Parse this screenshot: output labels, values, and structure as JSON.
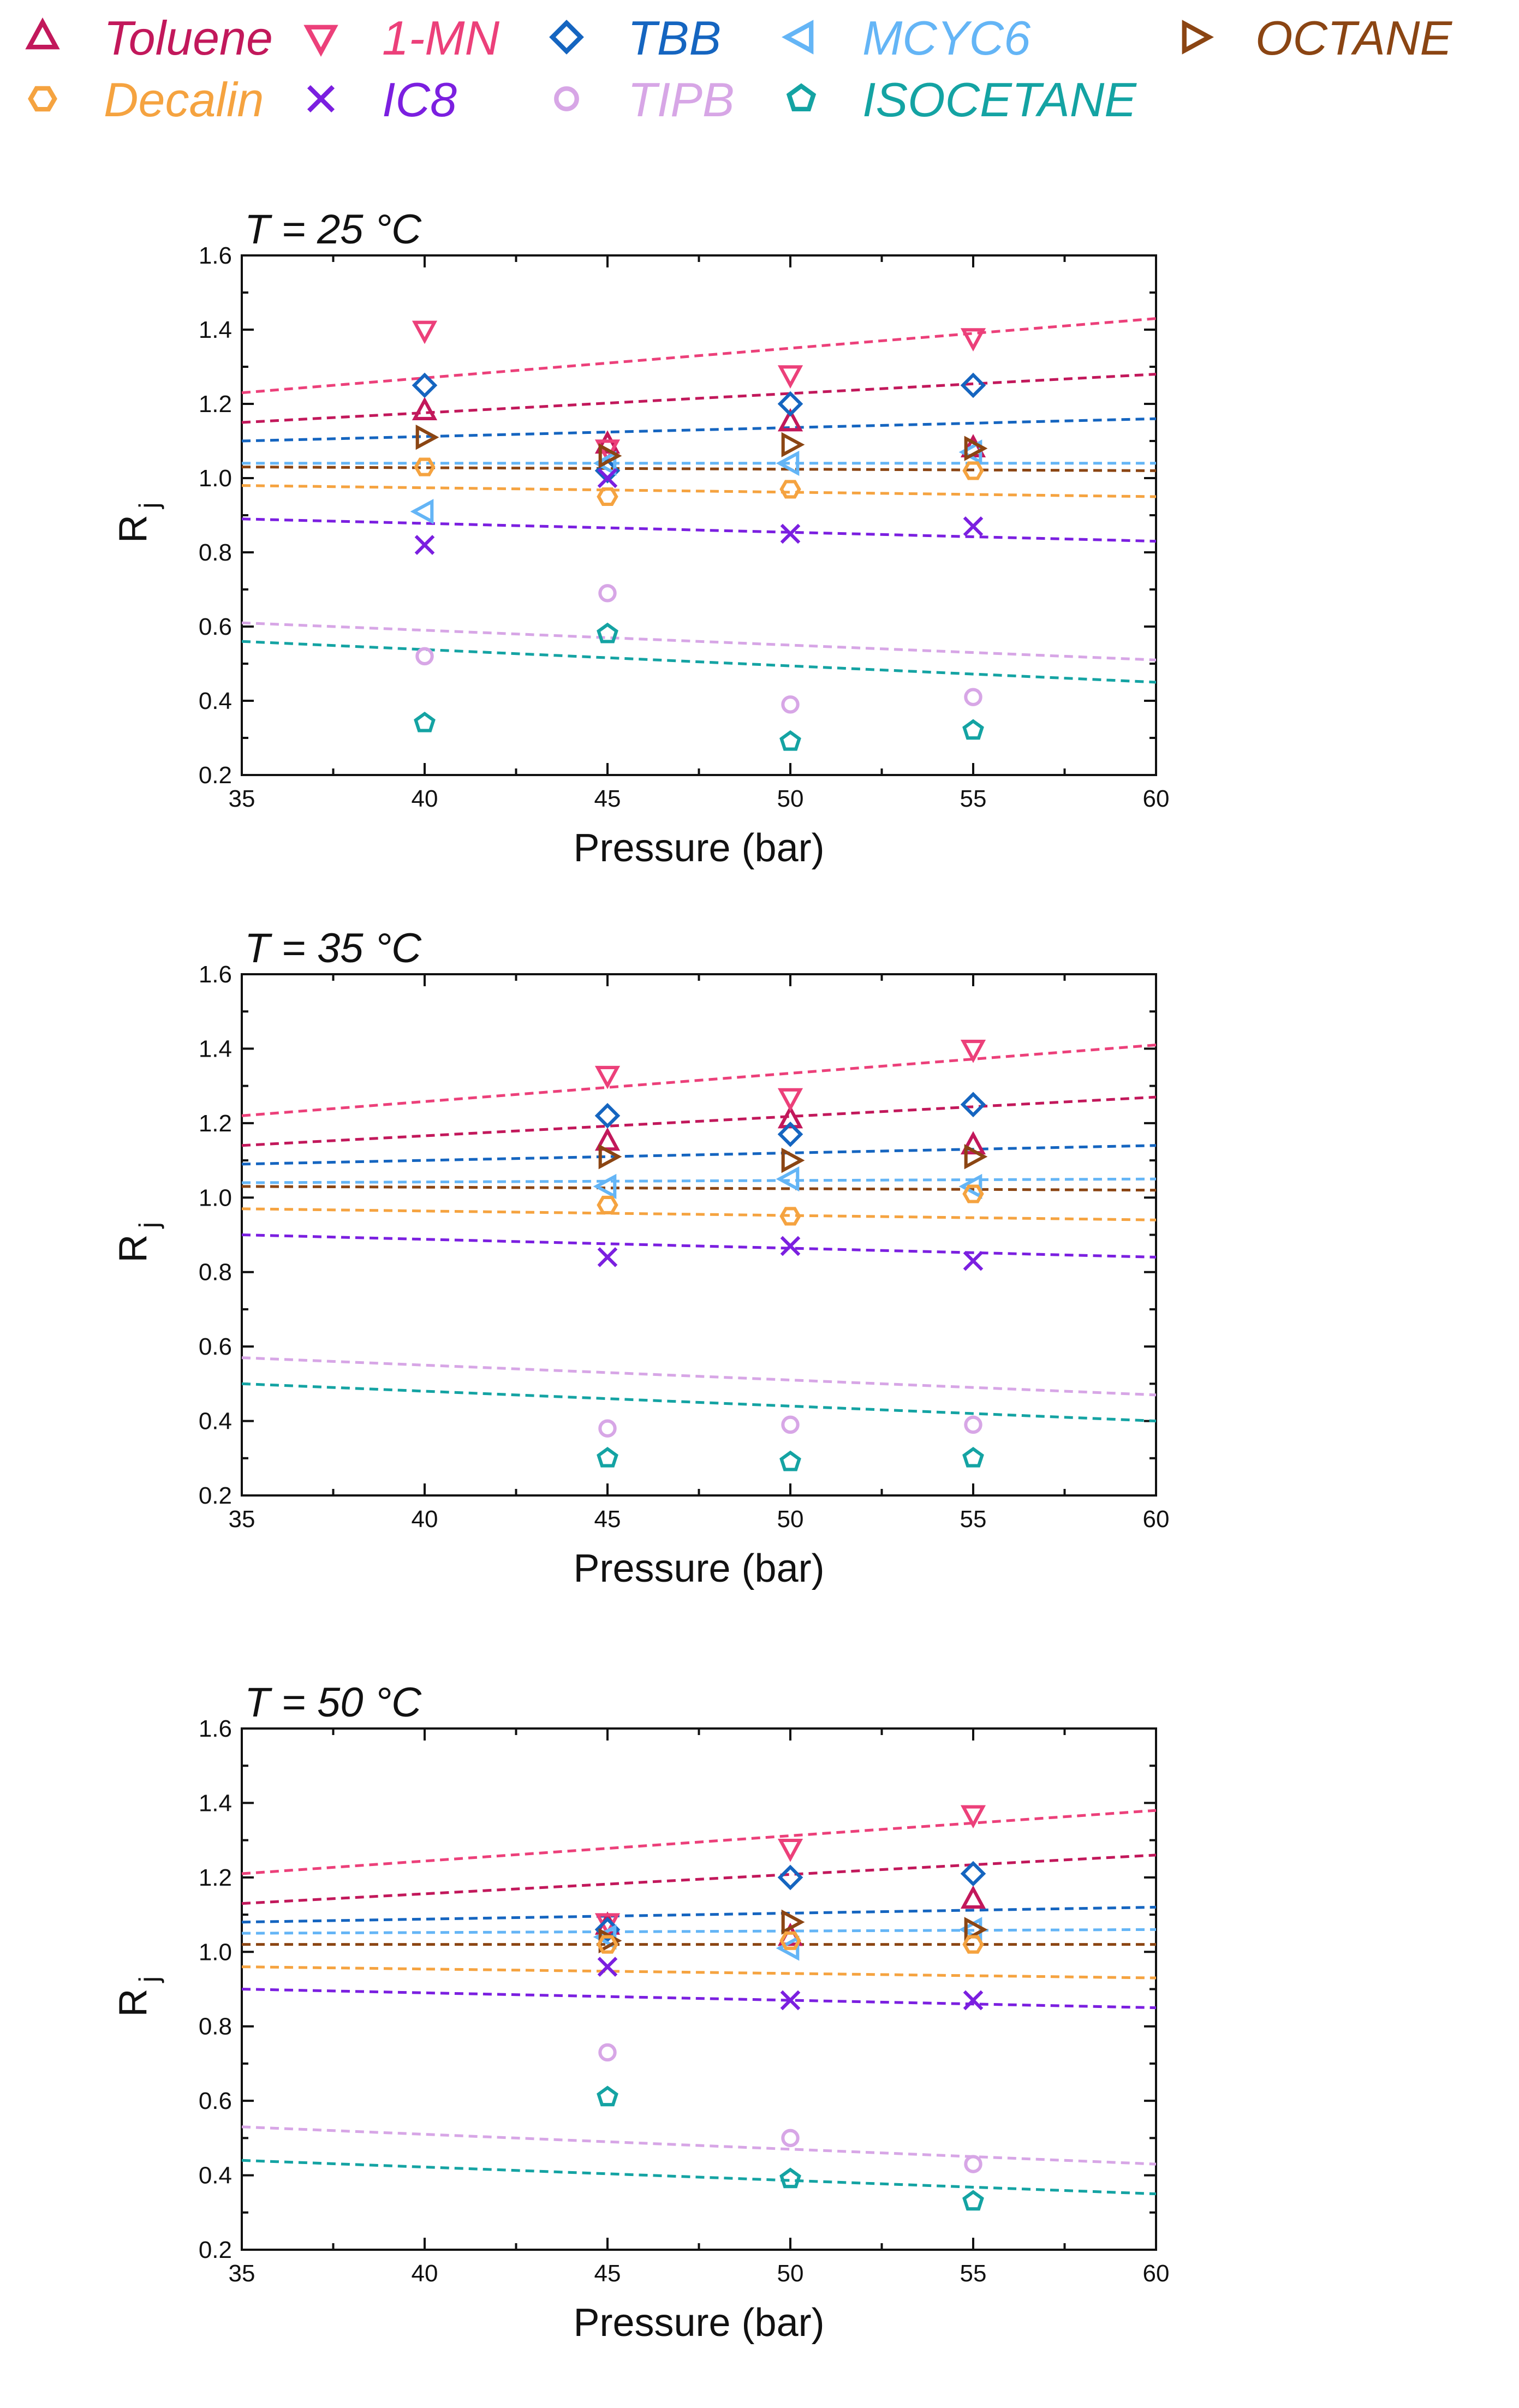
{
  "legend": [
    {
      "key": "toluene",
      "label": "Toluene",
      "marker": "triangle-up",
      "color": "#C2185B"
    },
    {
      "key": "onemn",
      "label": "1-MN",
      "marker": "triangle-down",
      "color": "#EC407A"
    },
    {
      "key": "tbb",
      "label": "TBB",
      "marker": "diamond",
      "color": "#1565C0"
    },
    {
      "key": "mcyc6",
      "label": "MCYC6",
      "marker": "triangle-left",
      "color": "#64B5F6"
    },
    {
      "key": "octane",
      "label": "OCTANE",
      "marker": "triangle-right",
      "color": "#8B4513"
    },
    {
      "key": "decalin",
      "label": "Decalin",
      "marker": "hexagon",
      "color": "#F5A340"
    },
    {
      "key": "ic8",
      "label": "IC8",
      "marker": "x",
      "color": "#7B1FE0"
    },
    {
      "key": "tipb",
      "label": "TIPB",
      "marker": "circle",
      "color": "#D7A6E6"
    },
    {
      "key": "isocetane",
      "label": "ISOCETANE",
      "marker": "pentagon",
      "color": "#14A3A3"
    }
  ],
  "chart_data": [
    {
      "type": "scatter",
      "title": "T = 25 °C",
      "xlabel": "Pressure (bar)",
      "ylabel": "R",
      "ylabel_sub": "j",
      "xlim": [
        35,
        60
      ],
      "ylim": [
        0.2,
        1.6
      ],
      "xticks": [
        "35",
        "40",
        "45",
        "50",
        "55",
        "60"
      ],
      "yticks": [
        "0.2",
        "0.4",
        "0.6",
        "0.8",
        "1.0",
        "1.2",
        "1.4",
        "1.6"
      ],
      "series": [
        {
          "key": "toluene",
          "points": [
            [
              40,
              1.18
            ],
            [
              45,
              1.09
            ],
            [
              50,
              1.15
            ],
            [
              55,
              1.08
            ]
          ],
          "fit": [
            [
              35,
              1.15
            ],
            [
              60,
              1.28
            ]
          ]
        },
        {
          "key": "onemn",
          "points": [
            [
              40,
              1.4
            ],
            [
              45,
              1.08
            ],
            [
              50,
              1.28
            ],
            [
              55,
              1.38
            ]
          ],
          "fit": [
            [
              35,
              1.23
            ],
            [
              60,
              1.43
            ]
          ]
        },
        {
          "key": "tbb",
          "points": [
            [
              40,
              1.25
            ],
            [
              45,
              1.02
            ],
            [
              50,
              1.2
            ],
            [
              55,
              1.25
            ]
          ],
          "fit": [
            [
              35,
              1.1
            ],
            [
              60,
              1.16
            ]
          ]
        },
        {
          "key": "mcyc6",
          "points": [
            [
              40,
              0.91
            ],
            [
              45,
              1.04
            ],
            [
              50,
              1.04
            ],
            [
              55,
              1.07
            ]
          ],
          "fit": [
            [
              35,
              1.04
            ],
            [
              60,
              1.04
            ]
          ]
        },
        {
          "key": "octane",
          "points": [
            [
              40,
              1.11
            ],
            [
              45,
              1.06
            ],
            [
              50,
              1.09
            ],
            [
              55,
              1.08
            ]
          ],
          "fit": [
            [
              35,
              1.03
            ],
            [
              60,
              1.02
            ]
          ]
        },
        {
          "key": "decalin",
          "points": [
            [
              40,
              1.03
            ],
            [
              45,
              0.95
            ],
            [
              50,
              0.97
            ],
            [
              55,
              1.02
            ]
          ],
          "fit": [
            [
              35,
              0.98
            ],
            [
              60,
              0.95
            ]
          ]
        },
        {
          "key": "ic8",
          "points": [
            [
              40,
              0.82
            ],
            [
              45,
              1.0
            ],
            [
              50,
              0.85
            ],
            [
              55,
              0.87
            ]
          ],
          "fit": [
            [
              35,
              0.89
            ],
            [
              60,
              0.83
            ]
          ]
        },
        {
          "key": "tipb",
          "points": [
            [
              40,
              0.52
            ],
            [
              45,
              0.69
            ],
            [
              50,
              0.39
            ],
            [
              55,
              0.41
            ]
          ],
          "fit": [
            [
              35,
              0.61
            ],
            [
              60,
              0.51
            ]
          ]
        },
        {
          "key": "isocetane",
          "points": [
            [
              40,
              0.34
            ],
            [
              45,
              0.58
            ],
            [
              50,
              0.29
            ],
            [
              55,
              0.32
            ]
          ],
          "fit": [
            [
              35,
              0.56
            ],
            [
              60,
              0.45
            ]
          ]
        }
      ]
    },
    {
      "type": "scatter",
      "title": "T = 35 °C",
      "xlabel": "Pressure (bar)",
      "ylabel": "R",
      "ylabel_sub": "j",
      "xlim": [
        35,
        60
      ],
      "ylim": [
        0.2,
        1.6
      ],
      "xticks": [
        "35",
        "40",
        "45",
        "50",
        "55",
        "60"
      ],
      "yticks": [
        "0.2",
        "0.4",
        "0.6",
        "0.8",
        "1.0",
        "1.2",
        "1.4",
        "1.6"
      ],
      "series": [
        {
          "key": "toluene",
          "points": [
            [
              45,
              1.15
            ],
            [
              50,
              1.21
            ],
            [
              55,
              1.14
            ]
          ],
          "fit": [
            [
              35,
              1.14
            ],
            [
              60,
              1.27
            ]
          ]
        },
        {
          "key": "onemn",
          "points": [
            [
              45,
              1.33
            ],
            [
              50,
              1.27
            ],
            [
              55,
              1.4
            ]
          ],
          "fit": [
            [
              35,
              1.22
            ],
            [
              60,
              1.41
            ]
          ]
        },
        {
          "key": "tbb",
          "points": [
            [
              45,
              1.22
            ],
            [
              50,
              1.17
            ],
            [
              55,
              1.25
            ]
          ],
          "fit": [
            [
              35,
              1.09
            ],
            [
              60,
              1.14
            ]
          ]
        },
        {
          "key": "mcyc6",
          "points": [
            [
              45,
              1.03
            ],
            [
              50,
              1.05
            ],
            [
              55,
              1.03
            ]
          ],
          "fit": [
            [
              35,
              1.04
            ],
            [
              60,
              1.05
            ]
          ]
        },
        {
          "key": "octane",
          "points": [
            [
              45,
              1.11
            ],
            [
              50,
              1.1
            ],
            [
              55,
              1.11
            ]
          ],
          "fit": [
            [
              35,
              1.03
            ],
            [
              60,
              1.02
            ]
          ]
        },
        {
          "key": "decalin",
          "points": [
            [
              45,
              0.98
            ],
            [
              50,
              0.95
            ],
            [
              55,
              1.01
            ]
          ],
          "fit": [
            [
              35,
              0.97
            ],
            [
              60,
              0.94
            ]
          ]
        },
        {
          "key": "ic8",
          "points": [
            [
              45,
              0.84
            ],
            [
              50,
              0.87
            ],
            [
              55,
              0.83
            ]
          ],
          "fit": [
            [
              35,
              0.9
            ],
            [
              60,
              0.84
            ]
          ]
        },
        {
          "key": "tipb",
          "points": [
            [
              45,
              0.38
            ],
            [
              50,
              0.39
            ],
            [
              55,
              0.39
            ]
          ],
          "fit": [
            [
              35,
              0.57
            ],
            [
              60,
              0.47
            ]
          ]
        },
        {
          "key": "isocetane",
          "points": [
            [
              45,
              0.3
            ],
            [
              50,
              0.29
            ],
            [
              55,
              0.3
            ]
          ],
          "fit": [
            [
              35,
              0.5
            ],
            [
              60,
              0.4
            ]
          ]
        }
      ]
    },
    {
      "type": "scatter",
      "title": "T = 50 °C",
      "xlabel": "Pressure (bar)",
      "ylabel": "R",
      "ylabel_sub": "j",
      "xlim": [
        35,
        60
      ],
      "ylim": [
        0.2,
        1.6
      ],
      "xticks": [
        "35",
        "40",
        "45",
        "50",
        "55",
        "60"
      ],
      "yticks": [
        "0.2",
        "0.4",
        "0.6",
        "0.8",
        "1.0",
        "1.2",
        "1.4",
        "1.6"
      ],
      "series": [
        {
          "key": "toluene",
          "points": [
            [
              45,
              1.07
            ],
            [
              50,
              1.04
            ],
            [
              55,
              1.14
            ]
          ],
          "fit": [
            [
              35,
              1.13
            ],
            [
              60,
              1.26
            ]
          ]
        },
        {
          "key": "onemn",
          "points": [
            [
              45,
              1.08
            ],
            [
              50,
              1.28
            ],
            [
              55,
              1.37
            ]
          ],
          "fit": [
            [
              35,
              1.21
            ],
            [
              60,
              1.38
            ]
          ]
        },
        {
          "key": "tbb",
          "points": [
            [
              45,
              1.06
            ],
            [
              50,
              1.2
            ],
            [
              55,
              1.21
            ]
          ],
          "fit": [
            [
              35,
              1.08
            ],
            [
              60,
              1.12
            ]
          ]
        },
        {
          "key": "mcyc6",
          "points": [
            [
              45,
              1.04
            ],
            [
              50,
              1.01
            ],
            [
              55,
              1.06
            ]
          ],
          "fit": [
            [
              35,
              1.05
            ],
            [
              60,
              1.06
            ]
          ]
        },
        {
          "key": "octane",
          "points": [
            [
              45,
              1.03
            ],
            [
              50,
              1.08
            ],
            [
              55,
              1.06
            ]
          ],
          "fit": [
            [
              35,
              1.02
            ],
            [
              60,
              1.02
            ]
          ]
        },
        {
          "key": "decalin",
          "points": [
            [
              45,
              1.02
            ],
            [
              50,
              1.03
            ],
            [
              55,
              1.02
            ]
          ],
          "fit": [
            [
              35,
              0.96
            ],
            [
              60,
              0.93
            ]
          ]
        },
        {
          "key": "ic8",
          "points": [
            [
              45,
              0.96
            ],
            [
              50,
              0.87
            ],
            [
              55,
              0.87
            ]
          ],
          "fit": [
            [
              35,
              0.9
            ],
            [
              60,
              0.85
            ]
          ]
        },
        {
          "key": "tipb",
          "points": [
            [
              45,
              0.73
            ],
            [
              50,
              0.5
            ],
            [
              55,
              0.43
            ]
          ],
          "fit": [
            [
              35,
              0.53
            ],
            [
              60,
              0.43
            ]
          ]
        },
        {
          "key": "isocetane",
          "points": [
            [
              45,
              0.61
            ],
            [
              50,
              0.39
            ],
            [
              55,
              0.33
            ]
          ],
          "fit": [
            [
              35,
              0.44
            ],
            [
              60,
              0.35
            ]
          ]
        }
      ]
    }
  ]
}
